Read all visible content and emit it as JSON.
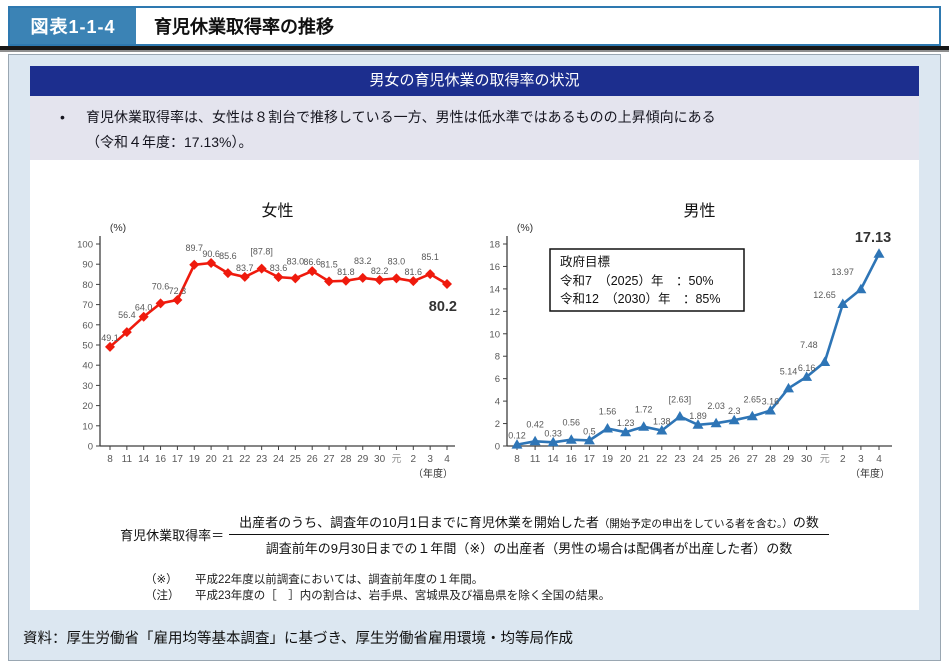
{
  "header": {
    "figure_label": "図表1-1-4",
    "figure_title": "育児休業取得率の推移"
  },
  "panel": {
    "section_title": "男女の育児休業の取得率の状況",
    "bullet": "•",
    "summary_line1": "育児休業取得率は、女性は８割台で推移している一方、男性は低水準ではあるものの上昇傾向にある",
    "summary_line2": "（令和４年度：17.13%）。"
  },
  "chart_data": [
    {
      "id": "women",
      "type": "line",
      "title": "女性",
      "unit": "(%)",
      "xlabel": "（年度）",
      "color": "#ef1a0d",
      "marker": "diamond",
      "grid": false,
      "legend": "none",
      "categories": [
        "8",
        "11",
        "14",
        "16",
        "17",
        "19",
        "20",
        "21",
        "22",
        "23",
        "24",
        "25",
        "26",
        "27",
        "28",
        "29",
        "30",
        "元",
        "2",
        "3",
        "4"
      ],
      "values": [
        49.1,
        56.4,
        64.0,
        70.6,
        72.3,
        89.7,
        90.6,
        85.6,
        83.7,
        87.8,
        83.6,
        83.0,
        86.6,
        81.5,
        81.8,
        83.2,
        82.2,
        83.0,
        81.6,
        85.1,
        80.2
      ],
      "labels": [
        "49.1",
        "56.4",
        "64.0",
        "70.6",
        "72.3",
        "89.7",
        "90.6",
        "85.6",
        "83.7",
        "[87.8]",
        "83.6",
        "83.0",
        "86.6",
        "81.5",
        "81.8",
        "83.2",
        "82.2",
        "83.0",
        "81.6",
        "85.1",
        "80.2"
      ],
      "ylim": [
        0,
        100
      ],
      "ystep": 10,
      "final_label": "80.2"
    },
    {
      "id": "men",
      "type": "line",
      "title": "男性",
      "unit": "(%)",
      "xlabel": "（年度）",
      "color": "#2e75b6",
      "marker": "triangle",
      "grid": false,
      "legend": "none",
      "categories": [
        "8",
        "11",
        "14",
        "16",
        "17",
        "19",
        "20",
        "21",
        "22",
        "23",
        "24",
        "25",
        "26",
        "27",
        "28",
        "29",
        "30",
        "元",
        "2",
        "3",
        "4"
      ],
      "values": [
        0.12,
        0.42,
        0.33,
        0.56,
        0.5,
        1.56,
        1.23,
        1.72,
        1.38,
        2.63,
        1.89,
        2.03,
        2.3,
        2.65,
        3.16,
        5.14,
        6.16,
        7.48,
        12.65,
        13.97,
        17.13
      ],
      "labels": [
        "0.12",
        "0.42",
        "0.33",
        "0.56",
        "0.5",
        "1.56",
        "1.23",
        "1.72",
        "1.38",
        "[2.63]",
        "1.89",
        "2.03",
        "2.3",
        "2.65",
        "3.16",
        "5.14",
        "6.16",
        "7.48",
        "12.65",
        "13.97",
        "17.13"
      ],
      "ylim": [
        0,
        18
      ],
      "ystep": 2,
      "final_label": "17.13",
      "annotation_box": {
        "title": "政府目標",
        "lines": [
          "令和7　（2025）年　：50%",
          "令和12　（2030）年　：85%"
        ]
      }
    }
  ],
  "formula": {
    "label": "育児休業取得率＝",
    "numerator_main": "出産者のうち、調査年の10月1日までに育児休業を開始した者",
    "numerator_small": "（開始予定の申出をしている者を含む。）",
    "numerator_suffix": "の数",
    "denominator": "調査前年の9月30日までの１年間（※）の出産者（男性の場合は配偶者が出産した者）の数"
  },
  "notes": [
    {
      "marker": "（※）",
      "text": "平成22年度以前調査においては、調査前年度の１年間。"
    },
    {
      "marker": "（注）",
      "text": "平成23年度の［　］内の割合は、岩手県、宮城県及び福島県を除く全国の結果。"
    }
  ],
  "footer": {
    "source": "資料：厚生労働省「雇用均等基本調査」に基づき、厚生労働省雇用環境・均等局作成"
  },
  "colors": {
    "accent_blue": "#3b83b5",
    "bar_border_blue": "#2e79b0",
    "header_navy": "#1c2e8e",
    "panel_bg": "#dce7f1",
    "summary_bg": "#e4e4ee",
    "women_line": "#ef1a0d",
    "men_line": "#2e75b6",
    "label_gray": "#595959"
  }
}
